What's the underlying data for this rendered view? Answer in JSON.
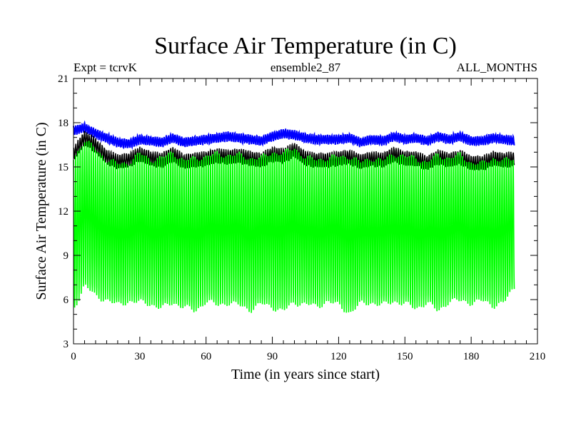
{
  "chart_data": {
    "type": "line",
    "title": "Surface Air Temperature (in C)",
    "subtitle_left": "Expt = tcrvK",
    "subtitle_center": "ensemble2_87",
    "subtitle_right": "ALL_MONTHS",
    "xlabel": "Time (in years since start)",
    "ylabel": "Surface Air Temperature (in C)",
    "xlim": [
      0,
      210
    ],
    "ylim": [
      3,
      21
    ],
    "xticks": [
      0,
      30,
      60,
      90,
      120,
      150,
      180,
      210
    ],
    "yticks": [
      3,
      6,
      9,
      12,
      15,
      18,
      21
    ],
    "xtick_labels": [
      "0",
      "30",
      "60",
      "90",
      "120",
      "150",
      "180",
      "210"
    ],
    "ytick_labels": [
      "3",
      "6",
      "9",
      "12",
      "15",
      "18",
      "21"
    ],
    "x_end": 199.5,
    "series": [
      {
        "name": "Surface air temperature, monthly (green)",
        "color": "#00ff00",
        "seasonal_min": [
          5.3,
          7.0,
          6.2,
          6.0,
          5.6,
          5.9,
          5.8,
          5.7,
          5.4,
          5.8,
          5.5,
          5.2,
          5.9,
          5.6,
          5.8,
          5.6,
          5.3,
          5.7,
          5.5,
          5.2,
          5.8,
          5.7,
          5.5,
          5.9,
          5.6,
          5.1,
          5.7,
          5.8,
          5.6,
          5.9,
          5.7,
          5.4,
          5.8,
          5.2,
          5.9,
          5.9,
          5.8,
          5.9,
          5.6,
          5.8,
          6.9
        ],
        "seasonal_max": [
          15.6,
          16.8,
          16.2,
          15.5,
          15.2,
          15.3,
          15.9,
          15.5,
          15.6,
          16.0,
          15.4,
          15.6,
          15.7,
          15.9,
          15.8,
          15.8,
          15.6,
          15.6,
          16.0,
          15.9,
          16.3,
          15.6,
          15.5,
          15.6,
          15.7,
          15.7,
          15.3,
          15.6,
          15.4,
          15.9,
          15.7,
          15.6,
          15.3,
          15.8,
          15.6,
          15.8,
          15.3,
          15.2,
          15.6,
          15.4,
          15.6
        ]
      },
      {
        "name": "Surface air temperature, annual maxima (black)",
        "color": "#000000",
        "values": [
          16.4,
          17.5,
          17.0,
          16.2,
          15.9,
          16.0,
          16.4,
          16.1,
          16.0,
          16.4,
          15.9,
          16.0,
          16.1,
          16.3,
          16.2,
          16.3,
          16.1,
          16.0,
          16.4,
          16.3,
          16.7,
          16.1,
          16.0,
          16.0,
          16.1,
          16.2,
          15.9,
          16.1,
          16.0,
          16.4,
          16.1,
          16.1,
          15.8,
          16.2,
          16.0,
          16.2,
          15.8,
          15.8,
          16.1,
          16.0,
          16.1
        ]
      },
      {
        "name": "Surface air temperature, upper band (blue)",
        "color": "#0000ff",
        "values": [
          17.8,
          18.0,
          17.6,
          17.3,
          17.0,
          16.9,
          17.2,
          17.1,
          17.0,
          17.3,
          17.0,
          17.1,
          17.2,
          17.3,
          17.4,
          17.3,
          17.2,
          17.1,
          17.4,
          17.6,
          17.5,
          17.3,
          17.2,
          17.2,
          17.2,
          17.3,
          17.0,
          17.2,
          17.1,
          17.4,
          17.2,
          17.3,
          17.1,
          17.4,
          17.2,
          17.4,
          17.1,
          17.1,
          17.3,
          17.2,
          17.1
        ]
      }
    ]
  }
}
